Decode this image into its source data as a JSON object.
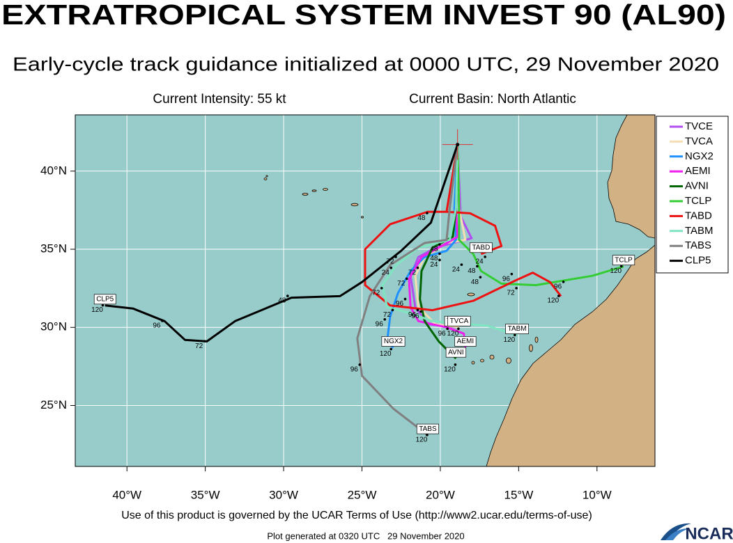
{
  "header": {
    "title": "EXTRATROPICAL SYSTEM INVEST 90 (AL90)",
    "subtitle": "Early-cycle track guidance initialized at 0000 UTC, 29 November 2020",
    "intensity": "Current Intensity: 55 kt",
    "basin": "Current Basin: North Atlantic"
  },
  "map": {
    "lon_range": [
      -43.3,
      -6.3
    ],
    "lat_range": [
      21.1,
      43.6
    ],
    "lon_ticks": [
      {
        "value": -40,
        "label": "40°W"
      },
      {
        "value": -35,
        "label": "35°W"
      },
      {
        "value": -30,
        "label": "30°W"
      },
      {
        "value": -25,
        "label": "25°W"
      },
      {
        "value": -20,
        "label": "20°W"
      },
      {
        "value": -15,
        "label": "15°W"
      },
      {
        "value": -10,
        "label": "10°W"
      }
    ],
    "lat_ticks": [
      {
        "value": 40,
        "label": "40°N"
      },
      {
        "value": 35,
        "label": "35°N"
      },
      {
        "value": 30,
        "label": "30°N"
      },
      {
        "value": 25,
        "label": "25°N"
      }
    ],
    "start": [
      -18.9,
      41.7
    ]
  },
  "tracks": [
    {
      "name": "TVCE",
      "color": "#b04ef0",
      "points": [
        [
          -18.9,
          41.7
        ],
        [
          -18.7,
          37.1
        ],
        [
          -18.0,
          35.7
        ],
        [
          -19.2,
          35.4
        ],
        [
          -20.3,
          35.1
        ],
        [
          -21.4,
          34.5
        ],
        [
          -21.9,
          33.3
        ],
        [
          -21.6,
          31.3
        ],
        [
          -20.8,
          30.2
        ],
        [
          -19.0,
          30.0
        ]
      ],
      "labels": [
        {
          "text": "72",
          "lon": -21.8,
          "lat": 33.5
        },
        {
          "text": "96",
          "lon": -21.6,
          "lat": 30.7
        }
      ]
    },
    {
      "name": "TVCA",
      "color": "#f5deb3",
      "points": [
        [
          -18.9,
          41.7
        ],
        [
          -18.8,
          37.6
        ],
        [
          -18.4,
          35.6
        ],
        [
          -19.6,
          35.4
        ],
        [
          -21.0,
          34.5
        ],
        [
          -21.6,
          33.3
        ],
        [
          -21.4,
          31.3
        ],
        [
          -20.3,
          30.2
        ],
        [
          -18.8,
          30.0
        ]
      ],
      "labels": [
        {
          "text": "120",
          "lon": -19.2,
          "lat": 29.6
        },
        {
          "text": "96",
          "lon": -22.6,
          "lat": 31.5
        }
      ]
    },
    {
      "name": "NGX2",
      "color": "#1e90ff",
      "points": [
        [
          -18.9,
          41.7
        ],
        [
          -19.1,
          37.6
        ],
        [
          -19.0,
          35.6
        ],
        [
          -19.6,
          34.9
        ],
        [
          -21.0,
          34.5
        ],
        [
          -21.9,
          33.6
        ],
        [
          -22.7,
          32.2
        ],
        [
          -23.2,
          30.7
        ],
        [
          -23.4,
          29.1
        ],
        [
          -23.0,
          28.7
        ]
      ],
      "labels": [
        {
          "text": "24",
          "lon": -20.4,
          "lat": 34.0
        },
        {
          "text": "48",
          "lon": -20.4,
          "lat": 34.4
        },
        {
          "text": "72",
          "lon": -23.4,
          "lat": 30.8
        },
        {
          "text": "96",
          "lon": -23.9,
          "lat": 30.2
        },
        {
          "text": "120",
          "lon": -23.5,
          "lat": 28.3
        }
      ]
    },
    {
      "name": "AEMI",
      "color": "#ee1eee",
      "points": [
        [
          -18.9,
          41.7
        ],
        [
          -19.0,
          37.6
        ],
        [
          -18.9,
          35.8
        ],
        [
          -20.1,
          35.1
        ],
        [
          -21.2,
          34.5
        ],
        [
          -22.0,
          33.1
        ],
        [
          -21.9,
          31.3
        ],
        [
          -21.4,
          30.4
        ],
        [
          -19.6,
          30.0
        ],
        [
          -18.5,
          29.6
        ],
        [
          -18.4,
          28.7
        ]
      ],
      "labels": [
        {
          "text": "48",
          "lon": -20.4,
          "lat": 35.0
        },
        {
          "text": "72",
          "lon": -22.5,
          "lat": 32.8
        },
        {
          "text": "96",
          "lon": -21.8,
          "lat": 30.8
        },
        {
          "text": "120",
          "lon": -19.0,
          "lat": 28.3
        }
      ]
    },
    {
      "name": "AVNI",
      "color": "#006400",
      "points": [
        [
          -18.9,
          41.7
        ],
        [
          -19.0,
          37.6
        ],
        [
          -19.2,
          35.8
        ],
        [
          -20.5,
          35.1
        ],
        [
          -21.2,
          33.6
        ],
        [
          -21.3,
          31.8
        ],
        [
          -21.0,
          30.4
        ],
        [
          -20.1,
          29.1
        ],
        [
          -19.0,
          28.0
        ]
      ],
      "labels": [
        {
          "text": "96",
          "lon": -19.9,
          "lat": 29.6
        },
        {
          "text": "120",
          "lon": -19.4,
          "lat": 27.3
        }
      ]
    },
    {
      "name": "TCLP",
      "color": "#33cc33",
      "points": [
        [
          -18.9,
          41.7
        ],
        [
          -18.8,
          37.6
        ],
        [
          -18.8,
          35.6
        ],
        [
          -17.9,
          34.7
        ],
        [
          -17.4,
          33.6
        ],
        [
          -16.1,
          32.8
        ],
        [
          -13.9,
          32.7
        ],
        [
          -10.3,
          33.3
        ],
        [
          -8.3,
          33.9
        ]
      ],
      "labels": [
        {
          "text": "24",
          "lon": -17.5,
          "lat": 34.2
        },
        {
          "text": "48",
          "lon": -18.0,
          "lat": 33.6
        },
        {
          "text": "96",
          "lon": -12.5,
          "lat": 32.6
        },
        {
          "text": "120",
          "lon": -8.8,
          "lat": 33.6
        }
      ]
    },
    {
      "name": "TABD",
      "color": "#ee1111",
      "points": [
        [
          -18.9,
          41.7
        ],
        [
          -19.6,
          37.4
        ],
        [
          -20.8,
          37.4
        ],
        [
          -23.2,
          36.6
        ],
        [
          -24.8,
          35.0
        ],
        [
          -24.8,
          32.7
        ],
        [
          -23.2,
          31.4
        ],
        [
          -20.5,
          31.1
        ],
        [
          -17.9,
          31.7
        ],
        [
          -15.2,
          33.0
        ],
        [
          -14.1,
          33.5
        ],
        [
          -13.0,
          32.9
        ],
        [
          -12.3,
          32.0
        ],
        null,
        [
          -19.6,
          37.4
        ],
        [
          -18.1,
          37.3
        ],
        [
          -16.5,
          36.5
        ],
        [
          -16.1,
          35.2
        ],
        [
          -17.4,
          34.7
        ]
      ],
      "labels": [
        {
          "text": "48",
          "lon": -21.2,
          "lat": 37.0
        },
        {
          "text": "72",
          "lon": -15.5,
          "lat": 32.2
        },
        {
          "text": "96",
          "lon": -15.8,
          "lat": 33.1
        },
        {
          "text": "120",
          "lon": -12.8,
          "lat": 31.7
        }
      ]
    },
    {
      "name": "TABM",
      "color": "#7fe5c0",
      "points": [
        [
          -18.9,
          41.7
        ],
        [
          -19.0,
          37.6
        ],
        [
          -19.4,
          35.6
        ],
        [
          -21.4,
          35.1
        ],
        [
          -22.8,
          34.0
        ],
        [
          -23.7,
          32.7
        ],
        [
          -23.4,
          31.3
        ],
        [
          -21.9,
          30.9
        ],
        [
          -20.5,
          30.4
        ],
        [
          -17.0,
          30.1
        ],
        [
          -15.1,
          29.5
        ]
      ],
      "labels": [
        {
          "text": "72",
          "lon": -23.2,
          "lat": 34.2
        },
        {
          "text": "24",
          "lon": -23.5,
          "lat": 33.5
        },
        {
          "text": "72",
          "lon": -24.1,
          "lat": 32.2
        },
        {
          "text": "120",
          "lon": -15.6,
          "lat": 29.2
        }
      ]
    },
    {
      "name": "TABS",
      "color": "#808080",
      "points": [
        [
          -18.9,
          41.7
        ],
        [
          -19.4,
          37.6
        ],
        [
          -19.6,
          35.6
        ],
        [
          -21.0,
          35.4
        ],
        [
          -23.2,
          34.0
        ],
        [
          -24.5,
          32.0
        ],
        [
          -25.3,
          29.3
        ],
        [
          -25.0,
          26.9
        ],
        [
          -23.0,
          24.8
        ],
        [
          -20.8,
          23.1
        ]
      ],
      "labels": [
        {
          "text": "24",
          "lon": -19.0,
          "lat": 33.7
        },
        {
          "text": "48",
          "lon": -17.8,
          "lat": 32.9
        },
        {
          "text": "96",
          "lon": -25.5,
          "lat": 27.3
        },
        {
          "text": "120",
          "lon": -21.2,
          "lat": 22.8
        }
      ]
    },
    {
      "name": "CLP5",
      "color": "#000000",
      "points": [
        [
          -18.9,
          41.7
        ],
        [
          -20.6,
          36.7
        ],
        [
          -22.5,
          34.9
        ],
        [
          -25.0,
          32.9
        ],
        [
          -26.4,
          32.0
        ],
        [
          -29.5,
          31.9
        ],
        [
          -33.1,
          30.4
        ],
        [
          -34.9,
          29.1
        ],
        [
          -36.3,
          29.2
        ],
        [
          -37.6,
          30.4
        ],
        [
          -39.6,
          31.2
        ],
        [
          -41.4,
          31.4
        ]
      ],
      "labels": [
        {
          "text": "48",
          "lon": -30.1,
          "lat": 31.7
        },
        {
          "text": "72",
          "lon": -35.4,
          "lat": 28.8
        },
        {
          "text": "96",
          "lon": -38.1,
          "lat": 30.1
        },
        {
          "text": "120",
          "lon": -41.9,
          "lat": 31.1
        }
      ]
    }
  ],
  "footer": {
    "terms": "Use of this product is governed by the UCAR Terms of Use (http://www2.ucar.edu/terms-of-use)",
    "generated": "Plot generated at 0320 UTC   29 November 2020",
    "logo": "NCAR"
  }
}
